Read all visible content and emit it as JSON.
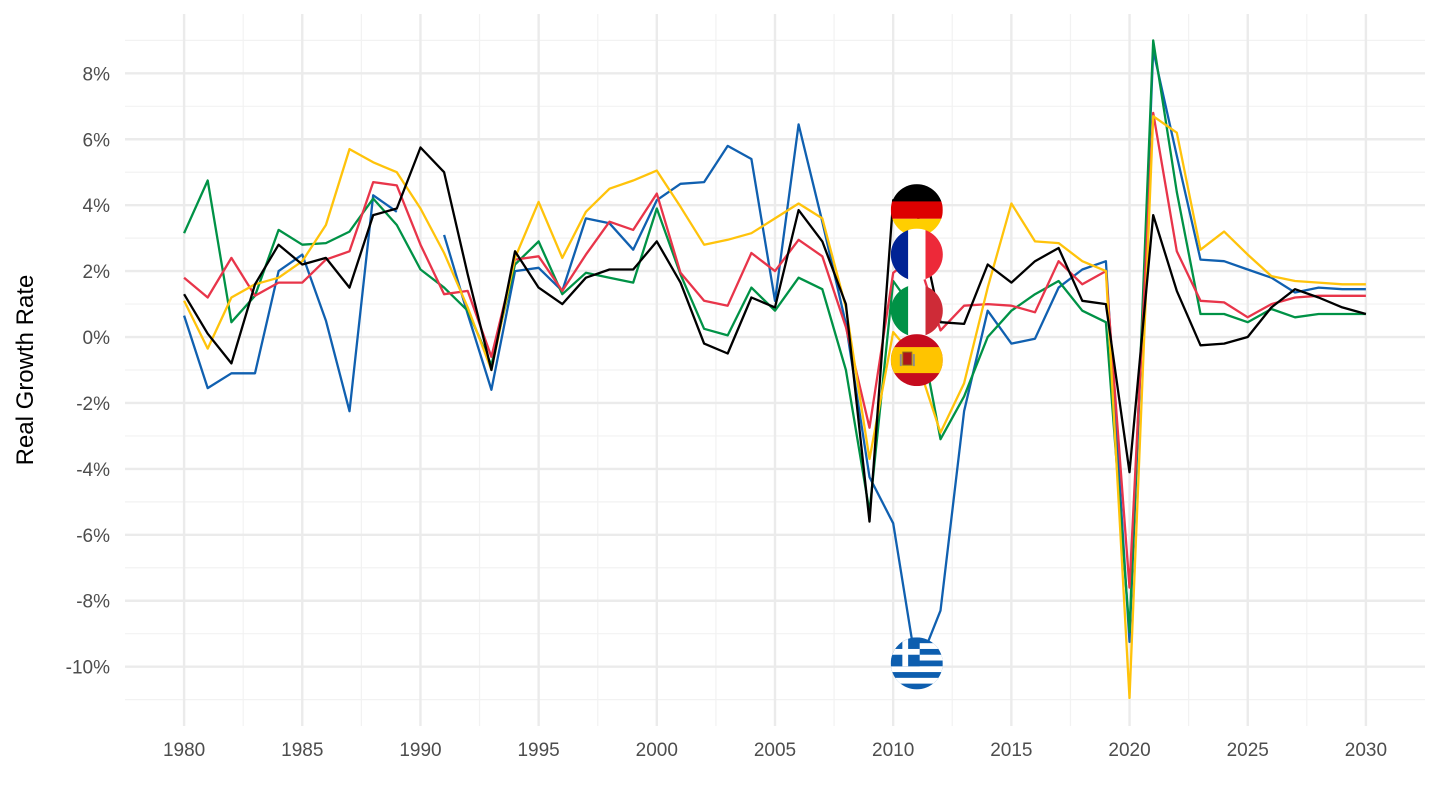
{
  "chart_data": {
    "type": "line",
    "title": "",
    "xlabel": "",
    "ylabel": "Real Growth Rate",
    "xlim": [
      1977.5,
      2032.5
    ],
    "ylim": [
      -11.8,
      9.8
    ],
    "x_ticks": [
      1980,
      1985,
      1990,
      1995,
      2000,
      2005,
      2010,
      2015,
      2020,
      2025,
      2030
    ],
    "x_tick_labels": [
      "1980",
      "1985",
      "1990",
      "1995",
      "2000",
      "2005",
      "2010",
      "2015",
      "2020",
      "2025",
      "2030"
    ],
    "y_ticks": [
      -10,
      -8,
      -6,
      -4,
      -2,
      0,
      2,
      4,
      6,
      8
    ],
    "y_tick_labels": [
      "-10%",
      "-8%",
      "-6%",
      "-4%",
      "-2%",
      "0%",
      "2%",
      "4%",
      "6%",
      "8%"
    ],
    "grid": true,
    "legend": "flags at 2011",
    "series": [
      {
        "color": "#1060b0",
        "flag": "greece-flag",
        "points": [
          [
            1980,
            0.65
          ],
          [
            1981,
            -1.55
          ],
          [
            1982,
            -1.1
          ],
          [
            1983,
            -1.1
          ],
          [
            1984,
            2.0
          ],
          [
            1985,
            2.5
          ],
          [
            1986,
            0.5
          ],
          [
            1987,
            -2.25
          ],
          [
            1988,
            4.3
          ],
          [
            1989,
            3.8
          ],
          [
            1991,
            3.1
          ],
          [
            1992,
            0.7
          ],
          [
            1993,
            -1.6
          ],
          [
            1994,
            2.0
          ],
          [
            1995,
            2.1
          ],
          [
            1996,
            1.4
          ],
          [
            1997,
            3.6
          ],
          [
            1998,
            3.45
          ],
          [
            1999,
            2.65
          ],
          [
            2000,
            4.15
          ],
          [
            2001,
            4.65
          ],
          [
            2002,
            4.7
          ],
          [
            2003,
            5.8
          ],
          [
            2004,
            5.4
          ],
          [
            2005,
            1.1
          ],
          [
            2006,
            6.45
          ],
          [
            2007,
            3.5
          ],
          [
            2008,
            0.4
          ],
          [
            2009,
            -4.25
          ],
          [
            2010,
            -5.65
          ],
          [
            2011,
            -10.1
          ],
          [
            2012,
            -8.3
          ],
          [
            2013,
            -2.25
          ],
          [
            2014,
            0.8
          ],
          [
            2015,
            -0.2
          ],
          [
            2016,
            -0.05
          ],
          [
            2017,
            1.5
          ],
          [
            2018,
            2.05
          ],
          [
            2019,
            2.3
          ],
          [
            2020,
            -9.25
          ],
          [
            2021,
            8.7
          ],
          [
            2022,
            5.5
          ],
          [
            2023,
            2.35
          ],
          [
            2024,
            2.3
          ],
          [
            2025,
            2.05
          ],
          [
            2026,
            1.8
          ],
          [
            2027,
            1.35
          ],
          [
            2028,
            1.5
          ],
          [
            2029,
            1.45
          ],
          [
            2030,
            1.45
          ]
        ]
      },
      {
        "color": "#009246",
        "flag": "italy-flag",
        "points": [
          [
            1980,
            3.15
          ],
          [
            1981,
            4.75
          ],
          [
            1982,
            0.45
          ],
          [
            1983,
            1.25
          ],
          [
            1984,
            3.25
          ],
          [
            1985,
            2.8
          ],
          [
            1986,
            2.85
          ],
          [
            1987,
            3.2
          ],
          [
            1988,
            4.2
          ],
          [
            1989,
            3.4
          ],
          [
            1990,
            2.05
          ],
          [
            1991,
            1.5
          ],
          [
            1992,
            0.8
          ],
          [
            1993,
            -0.85
          ],
          [
            1994,
            2.2
          ],
          [
            1995,
            2.9
          ],
          [
            1996,
            1.3
          ],
          [
            1997,
            1.95
          ],
          [
            1998,
            1.8
          ],
          [
            1999,
            1.65
          ],
          [
            2000,
            3.9
          ],
          [
            2001,
            1.9
          ],
          [
            2002,
            0.25
          ],
          [
            2003,
            0.05
          ],
          [
            2004,
            1.5
          ],
          [
            2005,
            0.8
          ],
          [
            2006,
            1.8
          ],
          [
            2007,
            1.45
          ],
          [
            2008,
            -1.0
          ],
          [
            2009,
            -5.3
          ],
          [
            2010,
            1.7
          ],
          [
            2011,
            0.7
          ],
          [
            2012,
            -3.1
          ],
          [
            2013,
            -1.8
          ],
          [
            2014,
            0.0
          ],
          [
            2015,
            0.8
          ],
          [
            2016,
            1.3
          ],
          [
            2017,
            1.7
          ],
          [
            2018,
            0.8
          ],
          [
            2019,
            0.45
          ],
          [
            2020,
            -8.95
          ],
          [
            2021,
            9.0
          ],
          [
            2022,
            4.4
          ],
          [
            2023,
            0.7
          ],
          [
            2024,
            0.7
          ],
          [
            2025,
            0.45
          ],
          [
            2026,
            0.85
          ],
          [
            2027,
            0.6
          ],
          [
            2028,
            0.7
          ],
          [
            2029,
            0.7
          ],
          [
            2030,
            0.7
          ]
        ]
      },
      {
        "color": "#e8354a",
        "flag": "france-flag",
        "points": [
          [
            1980,
            1.8
          ],
          [
            1981,
            1.2
          ],
          [
            1982,
            2.4
          ],
          [
            1983,
            1.25
          ],
          [
            1984,
            1.65
          ],
          [
            1985,
            1.65
          ],
          [
            1986,
            2.35
          ],
          [
            1987,
            2.6
          ],
          [
            1988,
            4.7
          ],
          [
            1989,
            4.6
          ],
          [
            1990,
            2.8
          ],
          [
            1991,
            1.3
          ],
          [
            1992,
            1.4
          ],
          [
            1993,
            -0.6
          ],
          [
            1994,
            2.35
          ],
          [
            1995,
            2.45
          ],
          [
            1996,
            1.4
          ],
          [
            1997,
            2.5
          ],
          [
            1998,
            3.5
          ],
          [
            1999,
            3.25
          ],
          [
            2000,
            4.35
          ],
          [
            2001,
            1.95
          ],
          [
            2002,
            1.1
          ],
          [
            2003,
            0.95
          ],
          [
            2004,
            2.55
          ],
          [
            2005,
            2.0
          ],
          [
            2006,
            2.95
          ],
          [
            2007,
            2.45
          ],
          [
            2008,
            0.3
          ],
          [
            2009,
            -2.75
          ],
          [
            2010,
            1.95
          ],
          [
            2011,
            2.5
          ],
          [
            2012,
            0.2
          ],
          [
            2013,
            0.95
          ],
          [
            2014,
            1.0
          ],
          [
            2015,
            0.95
          ],
          [
            2016,
            0.75
          ],
          [
            2017,
            2.3
          ],
          [
            2018,
            1.6
          ],
          [
            2019,
            2.0
          ],
          [
            2020,
            -7.6
          ],
          [
            2021,
            6.8
          ],
          [
            2022,
            2.6
          ],
          [
            2023,
            1.1
          ],
          [
            2024,
            1.05
          ],
          [
            2025,
            0.6
          ],
          [
            2026,
            1.0
          ],
          [
            2027,
            1.2
          ],
          [
            2028,
            1.25
          ],
          [
            2029,
            1.25
          ],
          [
            2030,
            1.25
          ]
        ]
      },
      {
        "color": "#ffc30b",
        "flag": "spain-flag",
        "points": [
          [
            1980,
            1.1
          ],
          [
            1981,
            -0.35
          ],
          [
            1982,
            1.2
          ],
          [
            1983,
            1.6
          ],
          [
            1984,
            1.8
          ],
          [
            1985,
            2.3
          ],
          [
            1986,
            3.4
          ],
          [
            1987,
            5.7
          ],
          [
            1988,
            5.3
          ],
          [
            1989,
            5.0
          ],
          [
            1990,
            3.9
          ],
          [
            1991,
            2.55
          ],
          [
            1992,
            0.9
          ],
          [
            1993,
            -1.0
          ],
          [
            1994,
            2.4
          ],
          [
            1995,
            4.1
          ],
          [
            1996,
            2.4
          ],
          [
            1997,
            3.8
          ],
          [
            1998,
            4.5
          ],
          [
            1999,
            4.75
          ],
          [
            2000,
            5.05
          ],
          [
            2001,
            3.95
          ],
          [
            2002,
            2.8
          ],
          [
            2003,
            2.95
          ],
          [
            2004,
            3.15
          ],
          [
            2005,
            3.6
          ],
          [
            2006,
            4.05
          ],
          [
            2007,
            3.6
          ],
          [
            2008,
            0.9
          ],
          [
            2009,
            -3.7
          ],
          [
            2010,
            0.15
          ],
          [
            2011,
            -0.7
          ],
          [
            2012,
            -2.9
          ],
          [
            2013,
            -1.4
          ],
          [
            2014,
            1.5
          ],
          [
            2015,
            4.05
          ],
          [
            2016,
            2.9
          ],
          [
            2017,
            2.85
          ],
          [
            2018,
            2.3
          ],
          [
            2019,
            2.0
          ],
          [
            2020,
            -10.95
          ],
          [
            2021,
            6.7
          ],
          [
            2022,
            6.2
          ],
          [
            2023,
            2.65
          ],
          [
            2024,
            3.2
          ],
          [
            2025,
            2.5
          ],
          [
            2026,
            1.85
          ],
          [
            2027,
            1.7
          ],
          [
            2028,
            1.65
          ],
          [
            2029,
            1.6
          ],
          [
            2030,
            1.6
          ]
        ]
      },
      {
        "color": "#000000",
        "flag": "germany-flag",
        "points": [
          [
            1980,
            1.3
          ],
          [
            1981,
            0.1
          ],
          [
            1982,
            -0.8
          ],
          [
            1983,
            1.6
          ],
          [
            1984,
            2.8
          ],
          [
            1985,
            2.2
          ],
          [
            1986,
            2.4
          ],
          [
            1987,
            1.5
          ],
          [
            1988,
            3.7
          ],
          [
            1989,
            3.9
          ],
          [
            1990,
            5.75
          ],
          [
            1991,
            5.0
          ],
          [
            1992,
            1.9
          ],
          [
            1993,
            -1.0
          ],
          [
            1994,
            2.6
          ],
          [
            1995,
            1.5
          ],
          [
            1996,
            1.0
          ],
          [
            1997,
            1.8
          ],
          [
            1998,
            2.05
          ],
          [
            1999,
            2.05
          ],
          [
            2000,
            2.9
          ],
          [
            2001,
            1.65
          ],
          [
            2002,
            -0.2
          ],
          [
            2003,
            -0.5
          ],
          [
            2004,
            1.2
          ],
          [
            2005,
            0.9
          ],
          [
            2006,
            3.85
          ],
          [
            2007,
            2.9
          ],
          [
            2008,
            1.0
          ],
          [
            2009,
            -5.6
          ],
          [
            2010,
            4.15
          ],
          [
            2011,
            3.8
          ],
          [
            2012,
            0.45
          ],
          [
            2013,
            0.4
          ],
          [
            2014,
            2.2
          ],
          [
            2015,
            1.65
          ],
          [
            2016,
            2.3
          ],
          [
            2017,
            2.7
          ],
          [
            2018,
            1.1
          ],
          [
            2019,
            1.0
          ],
          [
            2020,
            -4.1
          ],
          [
            2021,
            3.7
          ],
          [
            2022,
            1.4
          ],
          [
            2023,
            -0.25
          ],
          [
            2024,
            -0.2
          ],
          [
            2025,
            0.0
          ],
          [
            2026,
            0.9
          ],
          [
            2027,
            1.45
          ],
          [
            2028,
            1.2
          ],
          [
            2029,
            0.9
          ],
          [
            2030,
            0.7
          ]
        ]
      }
    ],
    "flag_markers": [
      {
        "flag": "germany-flag",
        "x": 2011,
        "y": 3.85
      },
      {
        "flag": "france-flag",
        "x": 2011,
        "y": 2.5
      },
      {
        "flag": "italy-flag",
        "x": 2011,
        "y": 0.8
      },
      {
        "flag": "spain-flag",
        "x": 2011,
        "y": -0.7
      },
      {
        "flag": "greece-flag",
        "x": 2011,
        "y": -9.9
      }
    ]
  }
}
